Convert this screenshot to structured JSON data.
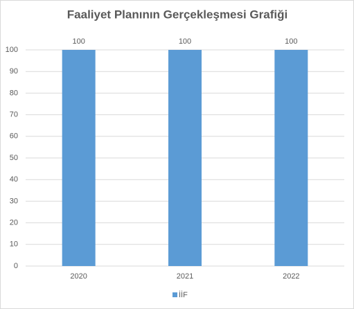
{
  "chart_data": {
    "type": "bar",
    "title": "Faaliyet Planının Gerçekleşmesi Grafiği",
    "categories": [
      "2020",
      "2021",
      "2022"
    ],
    "series": [
      {
        "name": "İİF",
        "color": "#5b9bd5",
        "values": [
          100,
          100,
          100
        ]
      }
    ],
    "ylim": [
      0,
      100
    ],
    "yticks": [
      0,
      10,
      20,
      30,
      40,
      50,
      60,
      70,
      80,
      90,
      100
    ],
    "grid": true,
    "legend": "bottom"
  }
}
